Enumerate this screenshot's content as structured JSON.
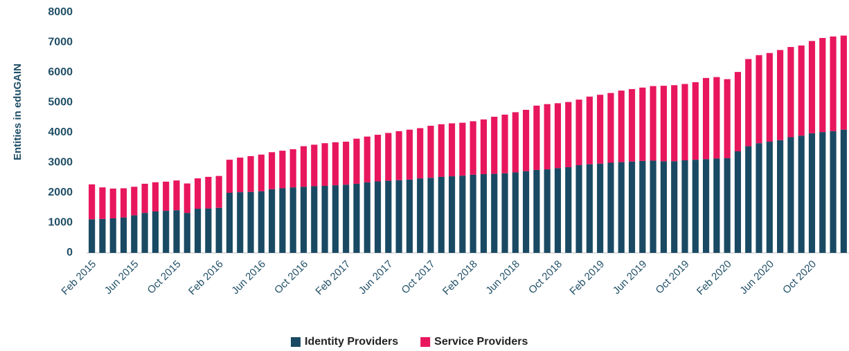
{
  "chart_data": {
    "type": "stacked_bar",
    "y_label": "Entities in eduGAIN",
    "categories": [
      "Feb 2015",
      null,
      null,
      null,
      "Jun 2015",
      null,
      null,
      null,
      "Oct 2015",
      null,
      null,
      null,
      "Feb 2016",
      null,
      null,
      null,
      "Jun 2016",
      null,
      null,
      null,
      "Oct 2016",
      null,
      null,
      null,
      "Feb 2017",
      null,
      null,
      null,
      "Jun 2017",
      null,
      null,
      null,
      "Oct 2017",
      null,
      null,
      null,
      "Feb 2018",
      null,
      null,
      null,
      "Jun 2018",
      null,
      null,
      null,
      "Oct 2018",
      null,
      null,
      null,
      "Feb 2019",
      null,
      null,
      null,
      "Jun 2019",
      null,
      null,
      null,
      "Oct 2019",
      null,
      null,
      null,
      "Feb 2020",
      null,
      null,
      null,
      "Jun 2020",
      null,
      null,
      null,
      "Oct 2020",
      null,
      null,
      null
    ],
    "series": [
      {
        "name": "Identity Providers",
        "color": "#1a4a63",
        "values": [
          1120,
          1130,
          1150,
          1180,
          1250,
          1330,
          1380,
          1400,
          1420,
          1330,
          1470,
          1480,
          1500,
          2000,
          2020,
          2030,
          2050,
          2120,
          2150,
          2180,
          2200,
          2220,
          2230,
          2250,
          2270,
          2300,
          2350,
          2380,
          2400,
          2420,
          2440,
          2480,
          2500,
          2530,
          2550,
          2570,
          2600,
          2620,
          2630,
          2650,
          2680,
          2720,
          2760,
          2780,
          2820,
          2850,
          2920,
          2950,
          2970,
          3000,
          3020,
          3040,
          3060,
          3070,
          3050,
          3050,
          3080,
          3100,
          3120,
          3140,
          3150,
          3380,
          3550,
          3650,
          3700,
          3750,
          3850,
          3900,
          3980,
          4020,
          4050,
          4100
        ]
      },
      {
        "name": "Service Providers",
        "color": "#e8175d",
        "values": [
          1160,
          1050,
          990,
          970,
          950,
          970,
          970,
          970,
          990,
          980,
          1010,
          1050,
          1060,
          1100,
          1150,
          1190,
          1220,
          1230,
          1250,
          1270,
          1350,
          1380,
          1420,
          1430,
          1430,
          1500,
          1520,
          1550,
          1590,
          1630,
          1660,
          1670,
          1730,
          1750,
          1760,
          1760,
          1780,
          1820,
          1900,
          1950,
          2000,
          2040,
          2140,
          2170,
          2160,
          2170,
          2180,
          2250,
          2290,
          2320,
          2380,
          2410,
          2440,
          2480,
          2510,
          2530,
          2540,
          2580,
          2700,
          2710,
          2630,
          2640,
          2900,
          2930,
          2950,
          3000,
          3000,
          3000,
          3070,
          3130,
          3150,
          3130
        ]
      }
    ],
    "ylim": [
      0,
      8000
    ],
    "yticks": [
      0,
      1000,
      2000,
      3000,
      4000,
      5000,
      6000,
      7000,
      8000
    ],
    "grid": false,
    "legend": "bottom"
  }
}
